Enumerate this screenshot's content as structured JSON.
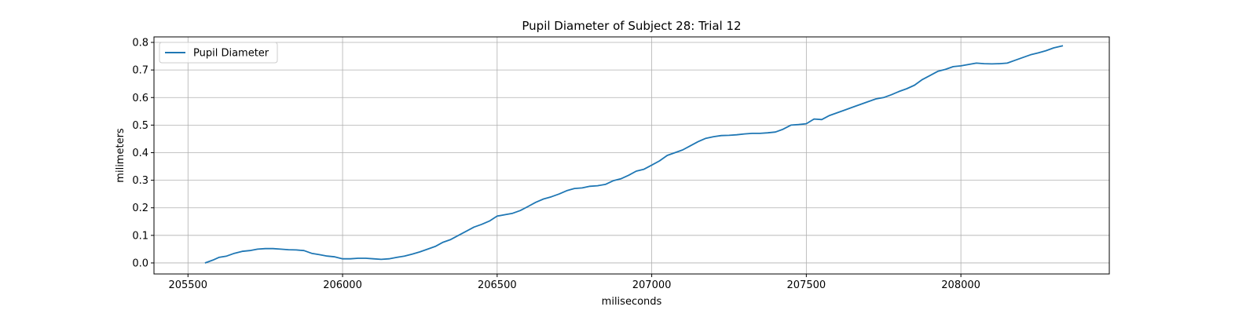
{
  "chart_data": {
    "type": "line",
    "title": "Pupil Diameter of Subject 28: Trial 12",
    "xlabel": "miliseconds",
    "ylabel": "milimeters",
    "xlim": [
      205390,
      208480
    ],
    "ylim": [
      -0.04,
      0.82
    ],
    "xticks": [
      205500,
      206000,
      206500,
      207000,
      207500,
      208000
    ],
    "yticks": [
      0.0,
      0.1,
      0.2,
      0.3,
      0.4,
      0.5,
      0.6,
      0.7,
      0.8
    ],
    "ytick_labels": [
      "0.0",
      "0.1",
      "0.2",
      "0.3",
      "0.4",
      "0.5",
      "0.6",
      "0.7",
      "0.8"
    ],
    "grid": true,
    "legend_position": "upper-left",
    "series_color": "#1f77b4",
    "series": [
      {
        "name": "Pupil Diameter",
        "x": [
          205555,
          205580,
          205600,
          205625,
          205650,
          205675,
          205700,
          205725,
          205750,
          205775,
          205800,
          205825,
          205850,
          205875,
          205900,
          205925,
          205950,
          205975,
          206000,
          206025,
          206050,
          206075,
          206100,
          206125,
          206150,
          206175,
          206200,
          206225,
          206250,
          206275,
          206300,
          206325,
          206350,
          206375,
          206400,
          206425,
          206450,
          206475,
          206500,
          206525,
          206550,
          206575,
          206600,
          206625,
          206650,
          206675,
          206700,
          206725,
          206750,
          206775,
          206800,
          206825,
          206850,
          206875,
          206900,
          206925,
          206950,
          206975,
          207000,
          207025,
          207050,
          207075,
          207100,
          207125,
          207150,
          207175,
          207200,
          207225,
          207250,
          207275,
          207300,
          207325,
          207350,
          207375,
          207400,
          207425,
          207450,
          207475,
          207500,
          207525,
          207550,
          207575,
          207600,
          207625,
          207650,
          207675,
          207700,
          207725,
          207750,
          207775,
          207800,
          207825,
          207850,
          207875,
          207900,
          207925,
          207950,
          207975,
          208000,
          208025,
          208050,
          208075,
          208100,
          208125,
          208150,
          208175,
          208200,
          208225,
          208250,
          208275,
          208300,
          208330
        ],
        "y": [
          0.0,
          0.01,
          0.02,
          0.025,
          0.035,
          0.042,
          0.045,
          0.05,
          0.052,
          0.052,
          0.05,
          0.048,
          0.047,
          0.045,
          0.035,
          0.03,
          0.025,
          0.022,
          0.015,
          0.015,
          0.017,
          0.017,
          0.015,
          0.013,
          0.015,
          0.02,
          0.025,
          0.032,
          0.04,
          0.05,
          0.06,
          0.075,
          0.085,
          0.1,
          0.115,
          0.13,
          0.14,
          0.152,
          0.17,
          0.175,
          0.18,
          0.19,
          0.205,
          0.22,
          0.232,
          0.24,
          0.25,
          0.262,
          0.27,
          0.272,
          0.278,
          0.28,
          0.285,
          0.298,
          0.305,
          0.318,
          0.333,
          0.34,
          0.355,
          0.37,
          0.39,
          0.4,
          0.41,
          0.425,
          0.44,
          0.452,
          0.458,
          0.462,
          0.463,
          0.465,
          0.468,
          0.47,
          0.47,
          0.472,
          0.475,
          0.485,
          0.5,
          0.502,
          0.505,
          0.522,
          0.52,
          0.535,
          0.545,
          0.555,
          0.565,
          0.575,
          0.585,
          0.595,
          0.6,
          0.61,
          0.622,
          0.632,
          0.645,
          0.665,
          0.68,
          0.695,
          0.702,
          0.712,
          0.715,
          0.72,
          0.725,
          0.723,
          0.722,
          0.723,
          0.725,
          0.735,
          0.745,
          0.755,
          0.762,
          0.77,
          0.78,
          0.788
        ]
      }
    ]
  }
}
